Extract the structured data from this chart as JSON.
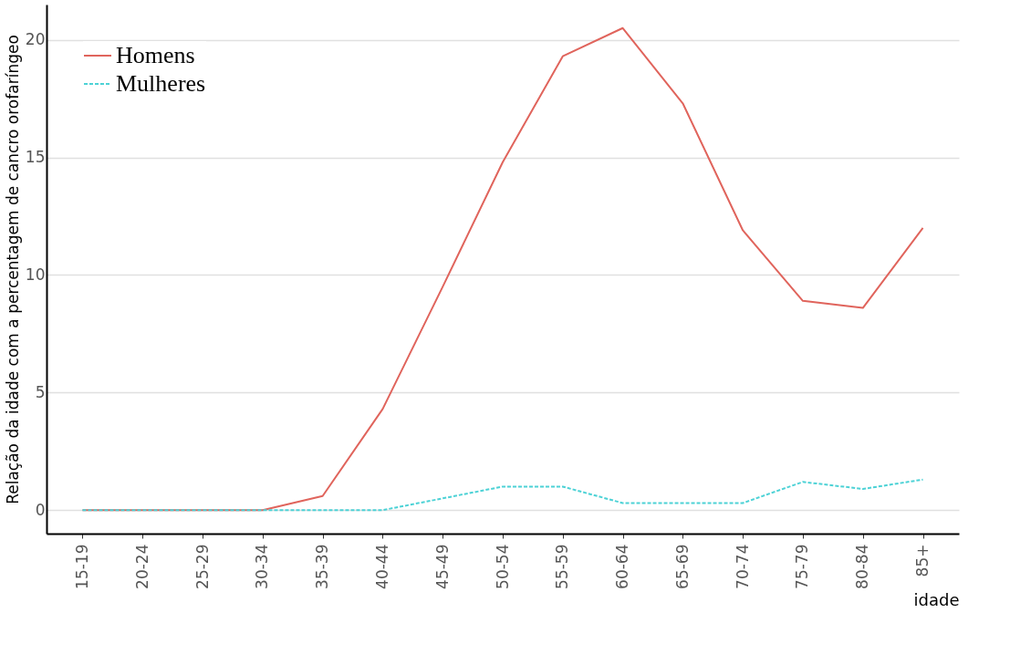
{
  "chart_data": {
    "type": "line",
    "xlabel": "idade",
    "ylabel": "Relação da idade com a percentagem de cancro orofaríngeo",
    "categories": [
      "15-19",
      "20-24",
      "25-29",
      "30-34",
      "35-39",
      "40-44",
      "45-49",
      "50-54",
      "55-59",
      "60-64",
      "65-69",
      "70-74",
      "75-79",
      "80-84",
      "85+"
    ],
    "series": [
      {
        "name": "Homens",
        "color": "#e0645c",
        "line_style": "solid",
        "values": [
          0,
          0,
          0,
          0,
          0.6,
          4.3,
          9.5,
          14.8,
          19.3,
          20.5,
          17.3,
          11.9,
          8.9,
          8.6,
          12
        ]
      },
      {
        "name": "Mulheres",
        "color": "#4dd2d6",
        "line_style": "dashed",
        "values": [
          0,
          0,
          0,
          0,
          0,
          0,
          0.5,
          1,
          1,
          0.3,
          0.3,
          0.3,
          1.2,
          0.9,
          1.3
        ]
      }
    ],
    "ylim": [
      -1,
      21.5
    ],
    "yticks": [
      0,
      5,
      10,
      15,
      20
    ],
    "grid": "y",
    "legend": "top left"
  }
}
